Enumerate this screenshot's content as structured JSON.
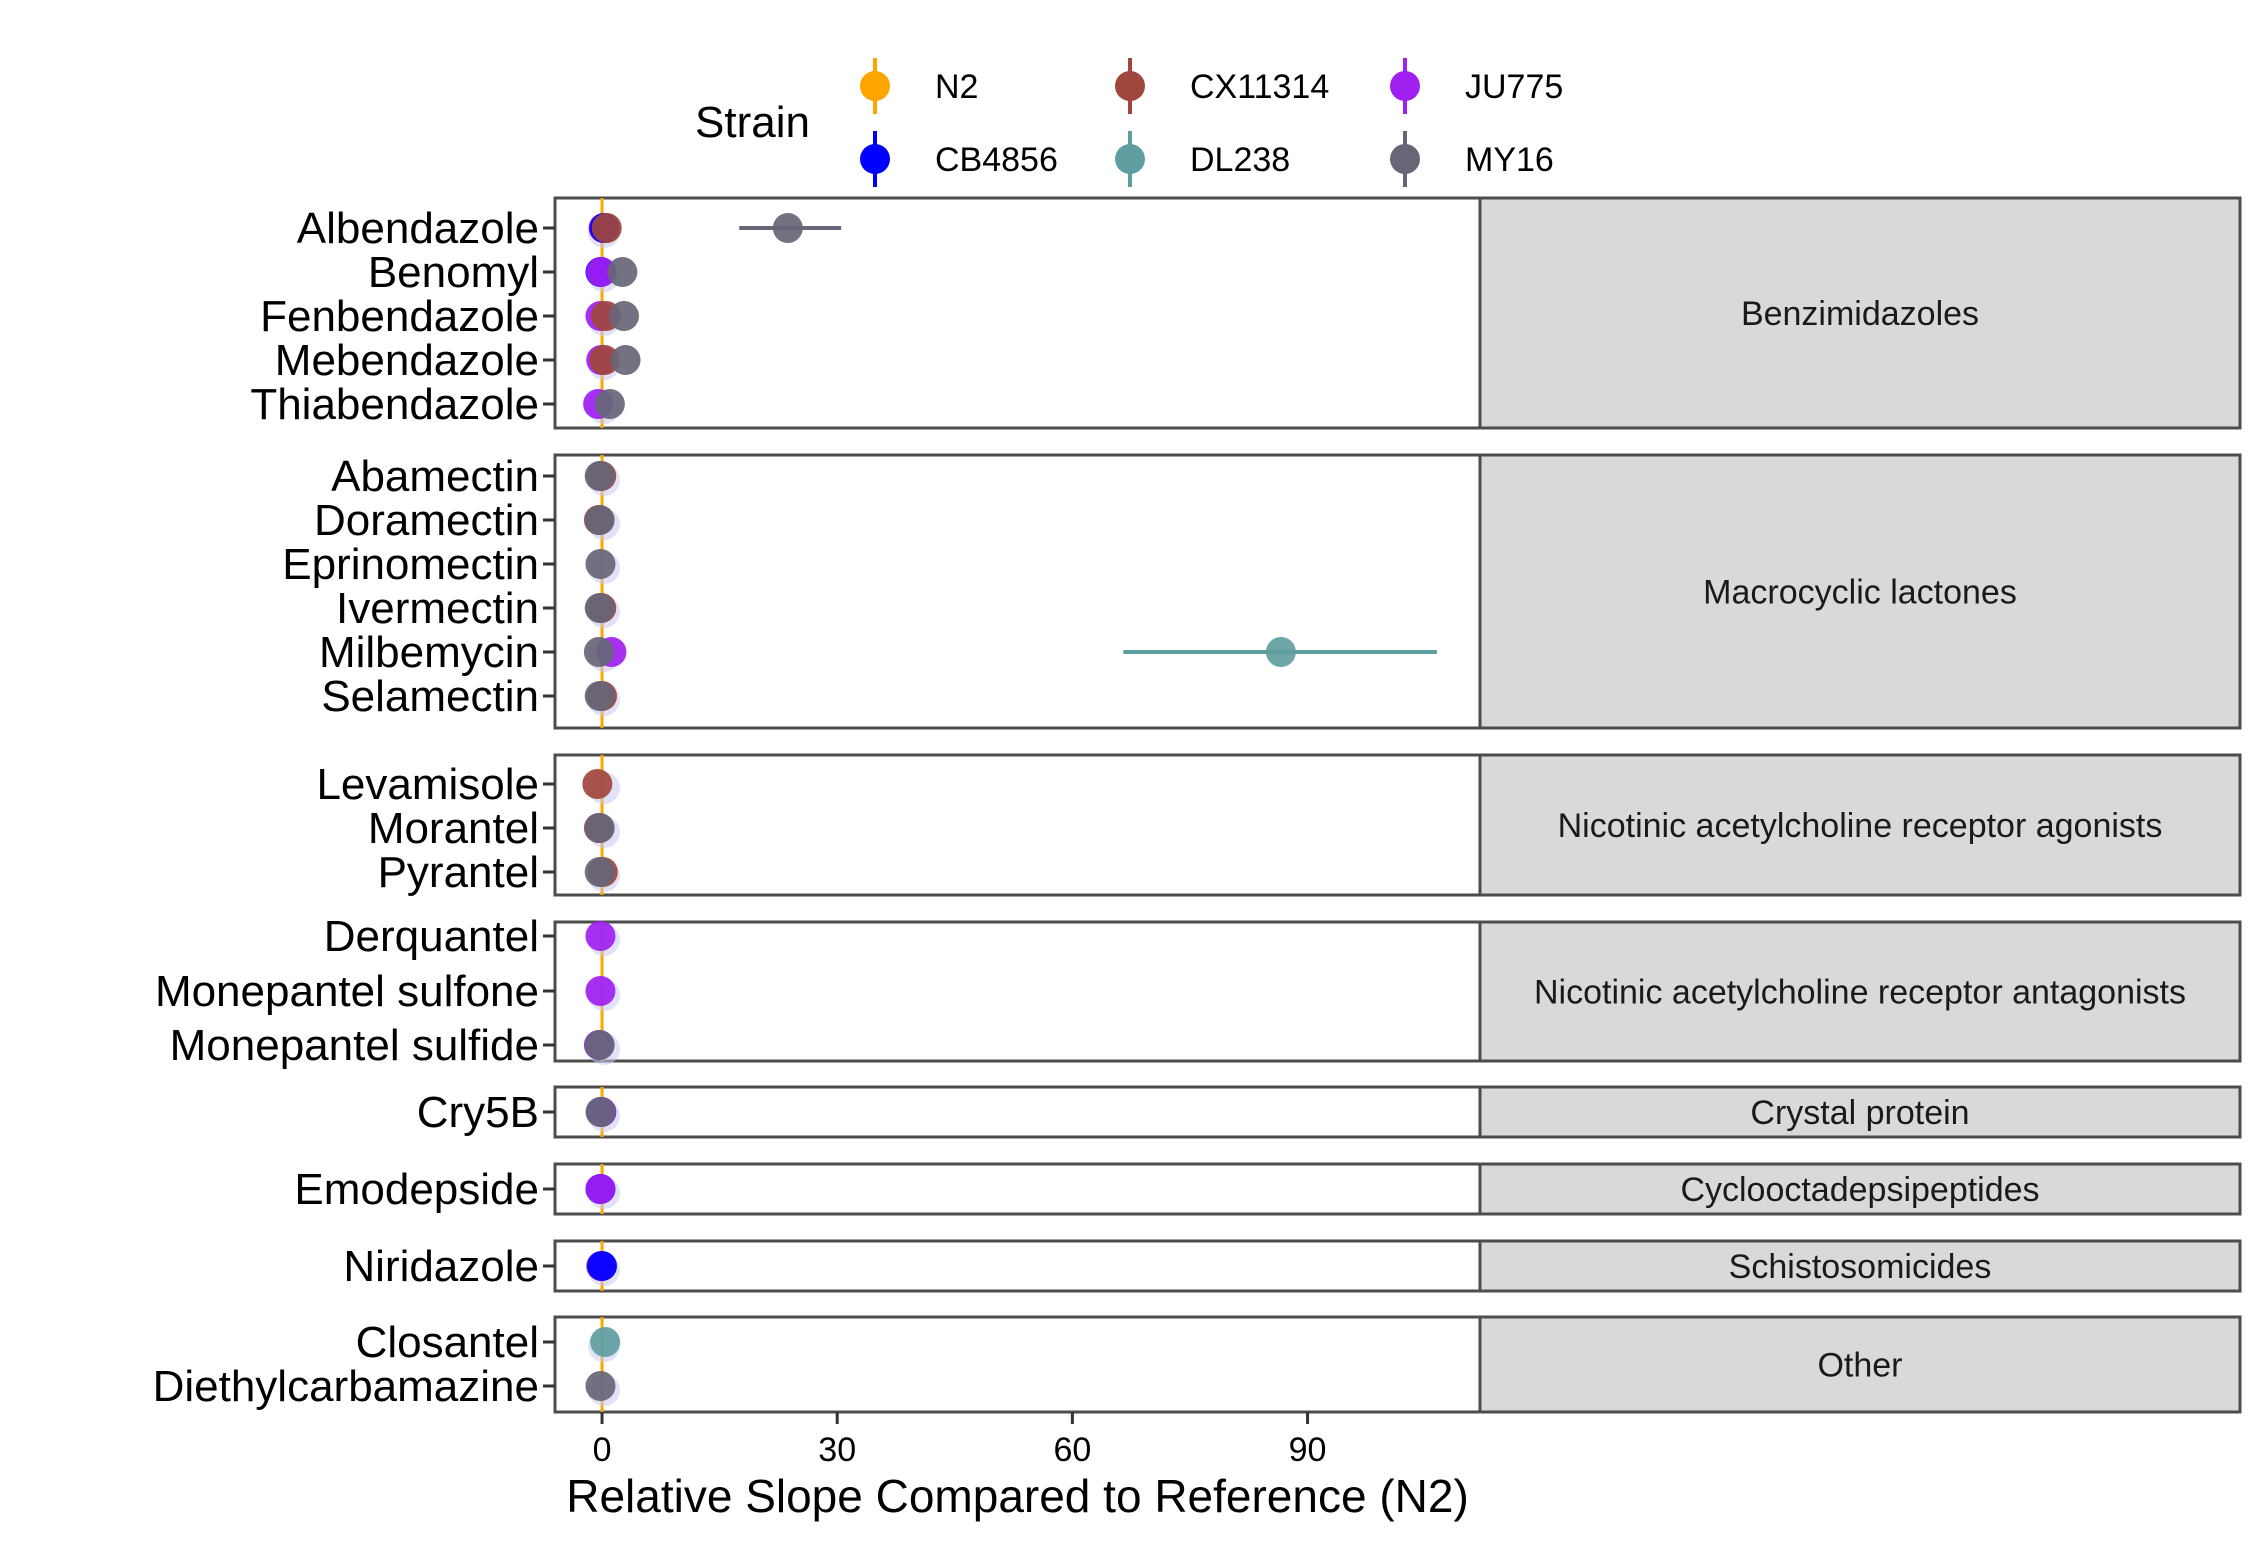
{
  "chart_data": {
    "type": "scatter",
    "title": "",
    "xlabel": "Relative Slope Compared to Reference (N2)",
    "ylabel": "",
    "xlim": [
      -6,
      112
    ],
    "x_ticks": [
      0,
      30,
      60,
      90
    ],
    "reference_line": 0,
    "grid": false,
    "legend": {
      "title": "Strain",
      "position": "top",
      "entries": [
        {
          "name": "N2",
          "color": "#FFA500"
        },
        {
          "name": "CB4856",
          "color": "#0000FF"
        },
        {
          "name": "CX11314",
          "color": "#A0463C"
        },
        {
          "name": "DL238",
          "color": "#5F9EA0"
        },
        {
          "name": "JU775",
          "color": "#A020F0"
        },
        {
          "name": "MY16",
          "color": "#666677"
        }
      ]
    },
    "panels": [
      {
        "class": "Benzimidazoles",
        "drugs": [
          "Albendazole",
          "Benomyl",
          "Fenbendazole",
          "Mebendazole",
          "Thiabendazole"
        ],
        "points": [
          {
            "drug": "Albendazole",
            "strain": "JU775",
            "x": 0.2
          },
          {
            "drug": "Albendazole",
            "strain": "CB4856",
            "x": 0.3
          },
          {
            "drug": "Albendazole",
            "strain": "CX11314",
            "x": 0.6
          },
          {
            "drug": "Albendazole",
            "strain": "MY16",
            "x": 23.7,
            "xmin": 17.5,
            "xmax": 30.5
          },
          {
            "drug": "Benomyl",
            "strain": "CB4856",
            "x": -0.2
          },
          {
            "drug": "Benomyl",
            "strain": "JU775",
            "x": -0.1
          },
          {
            "drug": "Benomyl",
            "strain": "MY16",
            "x": 2.6
          },
          {
            "drug": "Fenbendazole",
            "strain": "JU775",
            "x": -0.2
          },
          {
            "drug": "Fenbendazole",
            "strain": "CX11314",
            "x": 0.5
          },
          {
            "drug": "Fenbendazole",
            "strain": "MY16",
            "x": 2.8
          },
          {
            "drug": "Mebendazole",
            "strain": "JU775",
            "x": -0.1
          },
          {
            "drug": "Mebendazole",
            "strain": "CX11314",
            "x": 0.3
          },
          {
            "drug": "Mebendazole",
            "strain": "MY16",
            "x": 3.0
          },
          {
            "drug": "Thiabendazole",
            "strain": "JU775",
            "x": -0.5
          },
          {
            "drug": "Thiabendazole",
            "strain": "MY16",
            "x": 1.0
          }
        ]
      },
      {
        "class": "Macrocyclic lactones",
        "drugs": [
          "Abamectin",
          "Doramectin",
          "Eprinomectin",
          "Ivermectin",
          "Milbemycin",
          "Selamectin"
        ],
        "points": [
          {
            "drug": "Abamectin",
            "strain": "CX11314",
            "x": -0.1
          },
          {
            "drug": "Abamectin",
            "strain": "MY16",
            "x": -0.3
          },
          {
            "drug": "Doramectin",
            "strain": "CX11314",
            "x": -0.4
          },
          {
            "drug": "Doramectin",
            "strain": "MY16",
            "x": -0.3
          },
          {
            "drug": "Eprinomectin",
            "strain": "MY16",
            "x": -0.2
          },
          {
            "drug": "Ivermectin",
            "strain": "CX11314",
            "x": -0.1
          },
          {
            "drug": "Ivermectin",
            "strain": "MY16",
            "x": -0.3
          },
          {
            "drug": "Milbemycin",
            "strain": "JU775",
            "x": 1.2
          },
          {
            "drug": "Milbemycin",
            "strain": "MY16",
            "x": -0.4
          },
          {
            "drug": "Milbemycin",
            "strain": "DL238",
            "x": 86.6,
            "xmin": 66.5,
            "xmax": 106.5
          },
          {
            "drug": "Selamectin",
            "strain": "CX11314",
            "x": 0.0
          },
          {
            "drug": "Selamectin",
            "strain": "MY16",
            "x": -0.3
          }
        ]
      },
      {
        "class": "Nicotinic acetylcholine receptor agonists",
        "drugs": [
          "Levamisole",
          "Morantel",
          "Pyrantel"
        ],
        "points": [
          {
            "drug": "Levamisole",
            "strain": "CX11314",
            "x": -0.6
          },
          {
            "drug": "Morantel",
            "strain": "CX11314",
            "x": -0.4
          },
          {
            "drug": "Morantel",
            "strain": "MY16",
            "x": -0.3
          },
          {
            "drug": "Pyrantel",
            "strain": "CX11314",
            "x": 0.1
          },
          {
            "drug": "Pyrantel",
            "strain": "MY16",
            "x": -0.3
          }
        ]
      },
      {
        "class": "Nicotinic acetylcholine receptor antagonists",
        "drugs": [
          "Derquantel",
          "Monepantel sulfone",
          "Monepantel sulfide"
        ],
        "points": [
          {
            "drug": "Derquantel",
            "strain": "JU775",
            "x": -0.2
          },
          {
            "drug": "Monepantel sulfone",
            "strain": "JU775",
            "x": -0.2
          },
          {
            "drug": "Monepantel sulfide",
            "strain": "JU775",
            "x": -0.4
          },
          {
            "drug": "Monepantel sulfide",
            "strain": "MY16",
            "x": -0.3
          }
        ]
      },
      {
        "class": "Crystal protein",
        "drugs": [
          "Cry5B"
        ],
        "points": [
          {
            "drug": "Cry5B",
            "strain": "CB4856",
            "x": -0.1
          },
          {
            "drug": "Cry5B",
            "strain": "JU775",
            "x": -0.1
          },
          {
            "drug": "Cry5B",
            "strain": "MY16",
            "x": -0.2
          }
        ]
      },
      {
        "class": "Cyclooctadepsipeptides",
        "drugs": [
          "Emodepside"
        ],
        "points": [
          {
            "drug": "Emodepside",
            "strain": "CB4856",
            "x": -0.2
          },
          {
            "drug": "Emodepside",
            "strain": "JU775",
            "x": -0.2
          }
        ]
      },
      {
        "class": "Schistosomicides",
        "drugs": [
          "Niridazole"
        ],
        "points": [
          {
            "drug": "Niridazole",
            "strain": "JU775",
            "x": -0.1
          },
          {
            "drug": "Niridazole",
            "strain": "CB4856",
            "x": 0.0
          }
        ]
      },
      {
        "class": "Other",
        "drugs": [
          "Closantel",
          "Diethylcarbamazine"
        ],
        "points": [
          {
            "drug": "Closantel",
            "strain": "DL238",
            "x": 0.4
          },
          {
            "drug": "Diethylcarbamazine",
            "strain": "MY16",
            "x": -0.2
          }
        ]
      }
    ]
  }
}
